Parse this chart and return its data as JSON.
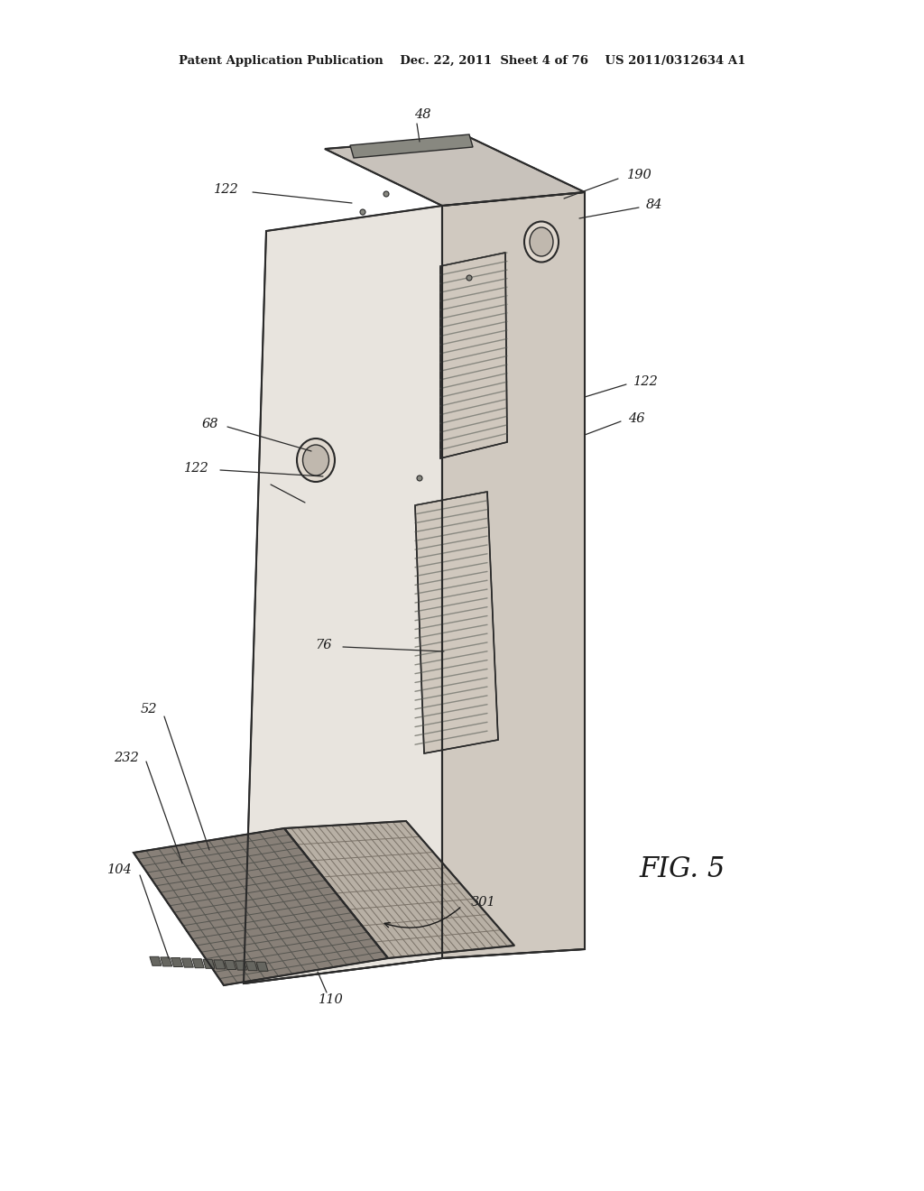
{
  "background_color": "#ffffff",
  "line_color": "#2a2a2a",
  "light_fill": "#f0ede8",
  "mid_fill": "#d8d3cc",
  "dark_fill": "#b0a89e",
  "shaded_fill": "#c8c2bb",
  "header_text": "Patent Application Publication    Dec. 22, 2011  Sheet 4 of 76    US 2011/0312634 A1",
  "fig_label": "FIG. 5"
}
